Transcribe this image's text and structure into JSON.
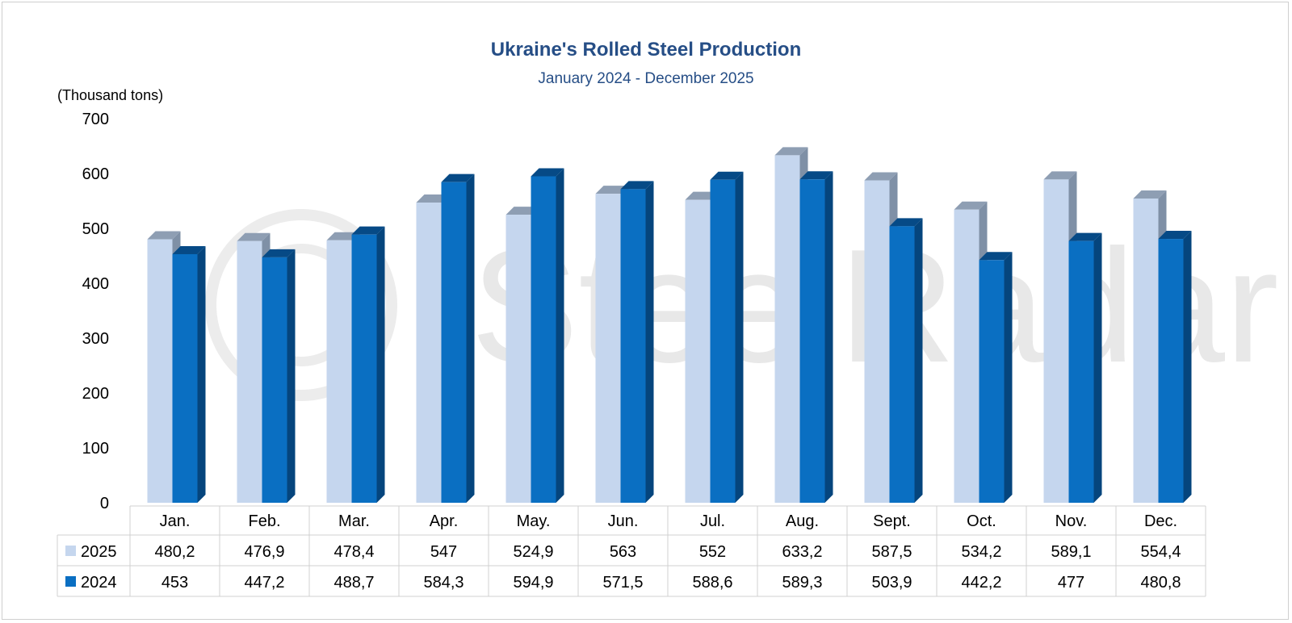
{
  "chart_data": {
    "type": "bar",
    "title": "Ukraine's Rolled Steel Production",
    "subtitle": "January 2024 - December 2025",
    "ylabel": "(Thousand tons)",
    "ylim": [
      0,
      700
    ],
    "yticks": [
      0,
      100,
      200,
      300,
      400,
      500,
      600,
      700
    ],
    "categories": [
      "Jan.",
      "Feb.",
      "Mar.",
      "Apr.",
      "May.",
      "Jun.",
      "Jul.",
      "Aug.",
      "Sept.",
      "Oct.",
      "Nov.",
      "Dec."
    ],
    "series": [
      {
        "name": "2025",
        "color": "#c5d6ee",
        "values": [
          480.2,
          476.9,
          478.4,
          547,
          524.9,
          563,
          552,
          633.2,
          587.5,
          534.2,
          589.1,
          554.4
        ],
        "labels": [
          "480,2",
          "476,9",
          "478,4",
          "547",
          "524,9",
          "563",
          "552",
          "633,2",
          "587,5",
          "534,2",
          "589,1",
          "554,4"
        ]
      },
      {
        "name": "2024",
        "color": "#0a6fc2",
        "values": [
          453,
          447.2,
          488.7,
          584.3,
          594.9,
          571.5,
          588.6,
          589.3,
          503.9,
          442.2,
          477,
          480.8
        ],
        "labels": [
          "453",
          "447,2",
          "488,7",
          "584,3",
          "594,9",
          "571,5",
          "588,6",
          "589,3",
          "503,9",
          "442,2",
          "477",
          "480,8"
        ]
      }
    ],
    "legend": "data-table-below",
    "grid": false,
    "watermark": "SteelRadar"
  }
}
